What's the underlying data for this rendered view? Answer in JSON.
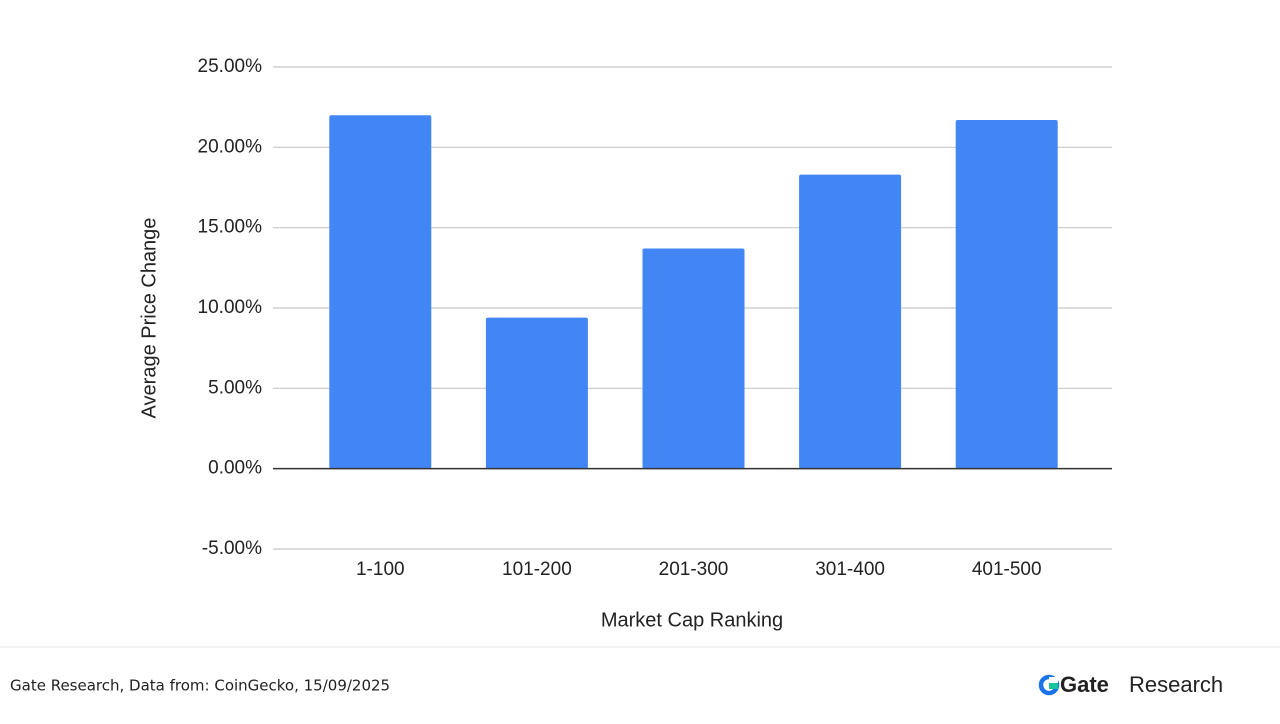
{
  "chart_data": {
    "type": "bar",
    "x_label": "Market Cap Ranking",
    "y_label": "Average Price Change",
    "categories": [
      "1-100",
      "101-200",
      "201-300",
      "301-400",
      "401-500"
    ],
    "values": [
      22.0,
      9.4,
      13.7,
      18.3,
      21.7
    ],
    "color": "#4285f4",
    "ylim": [
      -5,
      25
    ],
    "yticks": [
      {
        "value": -5,
        "label": "-5.00%"
      },
      {
        "value": 0,
        "label": "0.00%"
      },
      {
        "value": 5,
        "label": "5.00%"
      },
      {
        "value": 10,
        "label": "10.00%"
      },
      {
        "value": 15,
        "label": "15.00%"
      },
      {
        "value": 20,
        "label": "20.00%"
      },
      {
        "value": 25,
        "label": "25.00%"
      }
    ],
    "grid": true
  },
  "footer": {
    "source": "Gate Research, Data from: CoinGecko, 15/09/2025",
    "brand": "Gate",
    "brand_suffix": "Research"
  }
}
